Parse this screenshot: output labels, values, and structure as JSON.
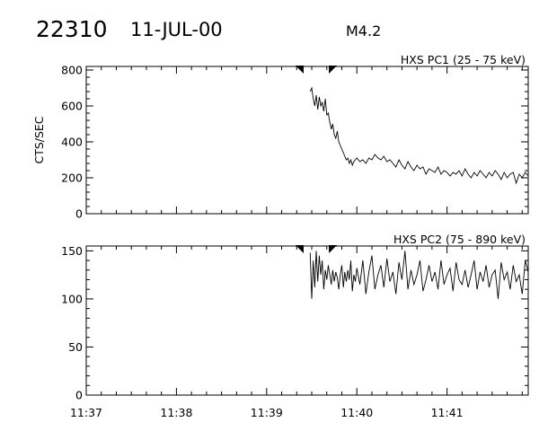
{
  "header": {
    "event_id": "22310",
    "date": "11-JUL-00",
    "flare_class": "M4.2"
  },
  "chart_data": [
    {
      "type": "line",
      "title": "HXS PC1 (25 - 75 keV)",
      "ylabel": "CTS/SEC",
      "xlabel": "",
      "xlim": [
        "11:37:00",
        "11:41:54"
      ],
      "ylim": [
        0,
        820
      ],
      "yticks": [
        0,
        200,
        400,
        600,
        800
      ],
      "xticks": [
        "11:37",
        "11:38",
        "11:39",
        "11:40",
        "11:41"
      ],
      "markers": [
        "11:39:24",
        "11:39:42"
      ],
      "series": [
        {
          "x": [
            "11:39:29",
            "11:39:30",
            "11:39:31",
            "11:39:32",
            "11:39:33",
            "11:39:34",
            "11:39:35",
            "11:39:36",
            "11:39:37",
            "11:39:38",
            "11:39:39",
            "11:39:40",
            "11:39:41",
            "11:39:42",
            "11:39:43",
            "11:39:44",
            "11:39:45",
            "11:39:46",
            "11:39:47",
            "11:39:48",
            "11:39:49",
            "11:39:50",
            "11:39:51",
            "11:39:52",
            "11:39:53",
            "11:39:54",
            "11:39:55",
            "11:39:56",
            "11:39:57",
            "11:39:58",
            "11:39:59",
            "11:40:00",
            "11:40:02",
            "11:40:04",
            "11:40:06",
            "11:40:08",
            "11:40:10",
            "11:40:12",
            "11:40:14",
            "11:40:16",
            "11:40:18",
            "11:40:20",
            "11:40:22",
            "11:40:24",
            "11:40:26",
            "11:40:28",
            "11:40:30",
            "11:40:32",
            "11:40:34",
            "11:40:36",
            "11:40:38",
            "11:40:40",
            "11:40:42",
            "11:40:44",
            "11:40:46",
            "11:40:48",
            "11:40:50",
            "11:40:52",
            "11:40:54",
            "11:40:56",
            "11:40:58",
            "11:41:00",
            "11:41:02",
            "11:41:04",
            "11:41:06",
            "11:41:08",
            "11:41:10",
            "11:41:12",
            "11:41:14",
            "11:41:16",
            "11:41:18",
            "11:41:20",
            "11:41:22",
            "11:41:24",
            "11:41:26",
            "11:41:28",
            "11:41:30",
            "11:41:32",
            "11:41:34",
            "11:41:36",
            "11:41:38",
            "11:41:40",
            "11:41:42",
            "11:41:44",
            "11:41:46",
            "11:41:48",
            "11:41:50",
            "11:41:52",
            "11:41:54"
          ],
          "values": [
            680,
            700,
            640,
            600,
            660,
            580,
            650,
            600,
            620,
            570,
            640,
            550,
            560,
            510,
            470,
            500,
            440,
            420,
            460,
            400,
            380,
            360,
            340,
            320,
            300,
            310,
            280,
            300,
            270,
            290,
            300,
            310,
            290,
            300,
            280,
            310,
            300,
            330,
            310,
            300,
            320,
            290,
            300,
            280,
            260,
            300,
            270,
            250,
            290,
            260,
            240,
            270,
            250,
            260,
            220,
            250,
            240,
            230,
            260,
            220,
            240,
            230,
            210,
            230,
            220,
            240,
            210,
            250,
            220,
            200,
            230,
            210,
            240,
            220,
            200,
            230,
            210,
            240,
            220,
            190,
            230,
            200,
            220,
            230,
            170,
            220,
            200,
            230,
            210
          ]
        }
      ]
    },
    {
      "type": "line",
      "title": "HXS PC2 (75 - 890 keV)",
      "ylabel": "",
      "xlabel": "",
      "xlim": [
        "11:37:00",
        "11:41:54"
      ],
      "ylim": [
        0,
        155
      ],
      "yticks": [
        0,
        50,
        100,
        150
      ],
      "xticks": [
        "11:37",
        "11:38",
        "11:39",
        "11:40",
        "11:41"
      ],
      "markers": [
        "11:39:24",
        "11:39:42"
      ],
      "series": [
        {
          "x": [
            "11:39:29",
            "11:39:30",
            "11:39:31",
            "11:39:32",
            "11:39:33",
            "11:39:34",
            "11:39:35",
            "11:39:36",
            "11:39:37",
            "11:39:38",
            "11:39:39",
            "11:39:40",
            "11:39:41",
            "11:39:42",
            "11:39:43",
            "11:39:44",
            "11:39:45",
            "11:39:46",
            "11:39:47",
            "11:39:48",
            "11:39:49",
            "11:39:50",
            "11:39:51",
            "11:39:52",
            "11:39:53",
            "11:39:54",
            "11:39:55",
            "11:39:56",
            "11:39:57",
            "11:39:58",
            "11:39:59",
            "11:40:00",
            "11:40:02",
            "11:40:04",
            "11:40:06",
            "11:40:08",
            "11:40:10",
            "11:40:12",
            "11:40:14",
            "11:40:16",
            "11:40:18",
            "11:40:20",
            "11:40:22",
            "11:40:24",
            "11:40:26",
            "11:40:28",
            "11:40:30",
            "11:40:32",
            "11:40:34",
            "11:40:36",
            "11:40:38",
            "11:40:40",
            "11:40:42",
            "11:40:44",
            "11:40:46",
            "11:40:48",
            "11:40:50",
            "11:40:52",
            "11:40:54",
            "11:40:56",
            "11:40:58",
            "11:41:00",
            "11:41:02",
            "11:41:04",
            "11:41:06",
            "11:41:08",
            "11:41:10",
            "11:41:12",
            "11:41:14",
            "11:41:16",
            "11:41:18",
            "11:41:20",
            "11:41:22",
            "11:41:24",
            "11:41:26",
            "11:41:28",
            "11:41:30",
            "11:41:32",
            "11:41:34",
            "11:41:36",
            "11:41:38",
            "11:41:40",
            "11:41:42",
            "11:41:44",
            "11:41:46",
            "11:41:48",
            "11:41:50",
            "11:41:52",
            "11:41:54"
          ],
          "values": [
            148,
            100,
            140,
            112,
            150,
            118,
            145,
            125,
            140,
            110,
            130,
            120,
            135,
            125,
            115,
            130,
            118,
            128,
            122,
            110,
            125,
            135,
            112,
            128,
            118,
            130,
            120,
            140,
            108,
            125,
            118,
            132,
            115,
            140,
            105,
            128,
            145,
            110,
            125,
            135,
            112,
            142,
            118,
            128,
            105,
            138,
            120,
            150,
            110,
            130,
            115,
            125,
            140,
            108,
            120,
            135,
            118,
            128,
            110,
            140,
            115,
            125,
            132,
            108,
            138,
            120,
            115,
            130,
            112,
            125,
            140,
            110,
            128,
            118,
            135,
            112,
            125,
            130,
            100,
            138,
            120,
            128,
            110,
            135,
            118,
            125,
            105,
            140,
            128
          ]
        }
      ]
    }
  ]
}
